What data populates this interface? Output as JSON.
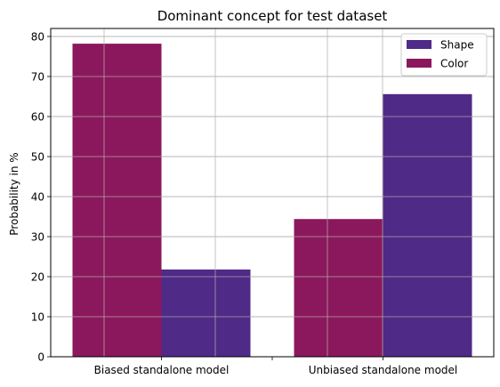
{
  "chart_data": {
    "type": "bar",
    "title": "Dominant concept for test dataset",
    "xlabel": "",
    "ylabel": "Probability in %",
    "categories": [
      "Biased standalone model",
      "Unbiased standalone model"
    ],
    "series": [
      {
        "name": "Shape",
        "color": "#4f2a87",
        "values": [
          21.8,
          65.6
        ]
      },
      {
        "name": "Color",
        "color": "#8b185c",
        "values": [
          78.2,
          34.4
        ]
      }
    ],
    "ylim": [
      0,
      82
    ],
    "yticks": [
      0,
      10,
      20,
      30,
      40,
      50,
      60,
      70,
      80
    ],
    "grid": true,
    "legend_position": "top-right"
  }
}
